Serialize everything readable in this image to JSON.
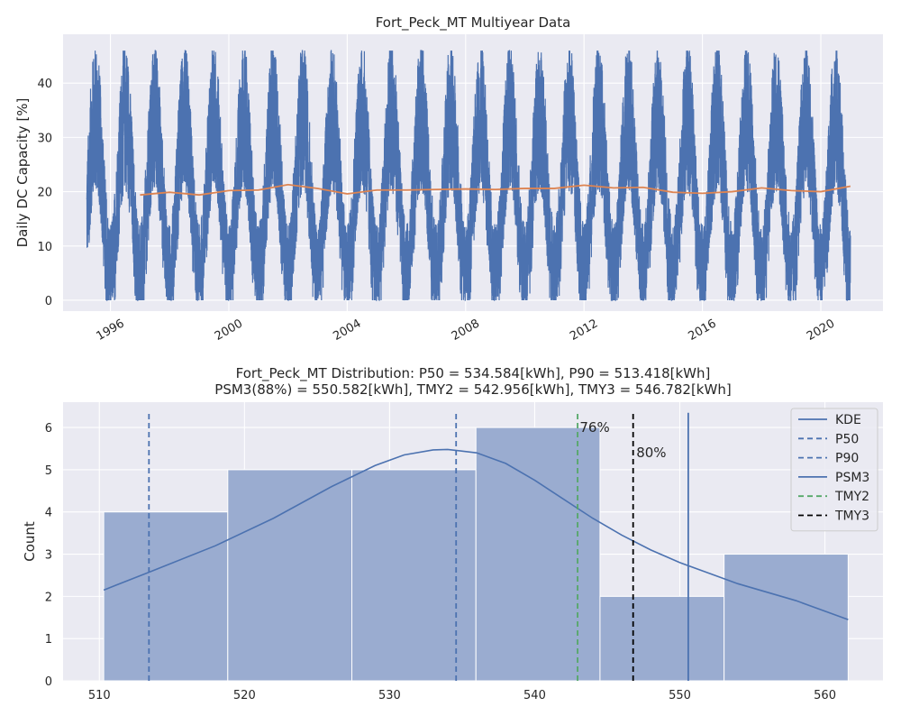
{
  "colors": {
    "background": "#eaeaf2",
    "grid": "#ffffff",
    "blue": "#4c72b0",
    "orange": "#dd8452",
    "green": "#55a868",
    "black": "#000000",
    "hist_fill": "#9aacd0"
  },
  "chart_data": [
    {
      "type": "line",
      "title": "Fort_Peck_MT Multiyear Data",
      "xlabel": "",
      "ylabel": "Daily DC Capacity [%]",
      "xlim": [
        1994.4,
        2022.1
      ],
      "ylim": [
        -2,
        49
      ],
      "x_ticks": [
        "1996",
        "2000",
        "2004",
        "2008",
        "2012",
        "2016",
        "2020"
      ],
      "x_tick_values": [
        1996,
        2000,
        2004,
        2008,
        2012,
        2016,
        2020
      ],
      "y_ticks": [
        0,
        10,
        20,
        30,
        40
      ],
      "grid": true,
      "series": [
        {
          "kind": "daily_seasonal",
          "color": "#4c72b0",
          "x_start": 1995.2,
          "x_end": 2021.0,
          "cycle_years": 1,
          "winter_min": 0,
          "summer_max": 46,
          "noise": 8
        },
        {
          "kind": "rolling_mean",
          "color": "#dd8452",
          "points": [
            [
              1997.0,
              19.4
            ],
            [
              1998.0,
              19.9
            ],
            [
              1999.0,
              19.4
            ],
            [
              2000.0,
              20.2
            ],
            [
              2001.0,
              20.3
            ],
            [
              2002.0,
              21.3
            ],
            [
              2003.0,
              20.6
            ],
            [
              2004.0,
              19.6
            ],
            [
              2005.0,
              20.3
            ],
            [
              2006.0,
              20.3
            ],
            [
              2007.0,
              20.4
            ],
            [
              2008.0,
              20.5
            ],
            [
              2009.0,
              20.4
            ],
            [
              2010.0,
              20.6
            ],
            [
              2011.0,
              20.6
            ],
            [
              2012.0,
              21.2
            ],
            [
              2013.0,
              20.7
            ],
            [
              2014.0,
              20.8
            ],
            [
              2015.0,
              19.9
            ],
            [
              2016.0,
              19.7
            ],
            [
              2017.0,
              20.0
            ],
            [
              2018.0,
              20.7
            ],
            [
              2019.0,
              20.2
            ],
            [
              2020.0,
              20.0
            ],
            [
              2021.0,
              21.0
            ]
          ]
        }
      ]
    },
    {
      "type": "histogram",
      "title_line1": "Fort_Peck_MT Distribution: P50 = 534.584[kWh], P90 = 513.418[kWh]",
      "title_line2": "PSM3(88%) = 550.582[kWh], TMY2 = 542.956[kWh], TMY3 = 546.782[kWh]",
      "xlabel": "",
      "ylabel": "Count",
      "xlim": [
        507.5,
        564.0
      ],
      "ylim": [
        0,
        6.6
      ],
      "x_ticks": [
        510,
        520,
        530,
        540,
        550,
        560
      ],
      "y_ticks": [
        0,
        1,
        2,
        3,
        4,
        5,
        6
      ],
      "bins": [
        {
          "x0": 510.3,
          "x1": 518.85,
          "count": 4
        },
        {
          "x0": 518.85,
          "x1": 527.4,
          "count": 5
        },
        {
          "x0": 527.4,
          "x1": 535.95,
          "count": 5
        },
        {
          "x0": 535.95,
          "x1": 544.5,
          "count": 6
        },
        {
          "x0": 544.5,
          "x1": 553.05,
          "count": 2
        },
        {
          "x0": 553.05,
          "x1": 561.6,
          "count": 3
        }
      ],
      "kde": {
        "x": [
          510.3,
          514,
          518,
          522,
          526,
          529,
          531,
          533,
          534,
          536,
          538,
          540,
          542,
          544,
          546,
          548,
          550,
          552,
          554,
          556,
          558,
          561.6
        ],
        "y": [
          2.15,
          2.65,
          3.2,
          3.85,
          4.6,
          5.1,
          5.35,
          5.47,
          5.48,
          5.4,
          5.15,
          4.75,
          4.3,
          3.85,
          3.45,
          3.1,
          2.8,
          2.55,
          2.3,
          2.1,
          1.9,
          1.45
        ]
      },
      "vlines": [
        {
          "label": "P50",
          "x": 534.584,
          "style": "dashed",
          "color": "#4c72b0"
        },
        {
          "label": "P90",
          "x": 513.418,
          "style": "dashed",
          "color": "#4c72b0"
        },
        {
          "label": "PSM3",
          "x": 550.582,
          "style": "solid",
          "color": "#4c72b0"
        },
        {
          "label": "TMY2",
          "x": 542.956,
          "style": "dashed",
          "color": "#55a868"
        },
        {
          "label": "TMY3",
          "x": 546.782,
          "style": "dashed",
          "color": "#000000"
        }
      ],
      "annotations": [
        {
          "text": "76%",
          "x": 543.1,
          "y": 6.0
        },
        {
          "text": "80%",
          "x": 547.0,
          "y": 5.4
        }
      ],
      "legend": {
        "placement": "top-right",
        "entries": [
          {
            "label": "KDE",
            "style": "solid",
            "color": "#4c72b0"
          },
          {
            "label": "P50",
            "style": "dashed",
            "color": "#4c72b0"
          },
          {
            "label": "P90",
            "style": "dashed",
            "color": "#4c72b0"
          },
          {
            "label": "PSM3",
            "style": "solid",
            "color": "#4c72b0"
          },
          {
            "label": "TMY2",
            "style": "dashed",
            "color": "#55a868"
          },
          {
            "label": "TMY3",
            "style": "dashed",
            "color": "#000000"
          }
        ]
      }
    }
  ]
}
